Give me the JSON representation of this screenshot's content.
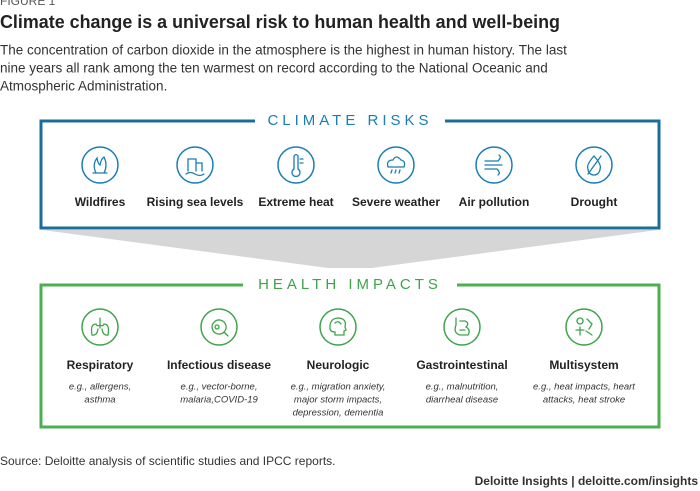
{
  "figure_label": "FIGURE 1",
  "title": "Climate change is a universal risk to human health and well-being",
  "subtitle": [
    "The concentration of carbon dioxide in the atmosphere is the highest in human history. The last",
    "nine years all rank among the ten warmest on record according to the National Oceanic and",
    "Atmospheric Administration."
  ],
  "climate_risks": {
    "heading": "CLIMATE RISKS",
    "items": [
      {
        "label": "Wildfires"
      },
      {
        "label": "Rising sea levels"
      },
      {
        "label": "Extreme heat"
      },
      {
        "label": "Severe weather"
      },
      {
        "label": "Air pollution"
      },
      {
        "label": "Drought"
      }
    ]
  },
  "health_impacts": {
    "heading": "HEALTH IMPACTS",
    "items": [
      {
        "label": "Respiratory",
        "examples": [
          "e.g., allergens,",
          "asthma"
        ]
      },
      {
        "label": "Infectious disease",
        "examples": [
          "e.g., vector-borne,",
          "malaria,COVID-19"
        ]
      },
      {
        "label": "Neurologic",
        "examples": [
          "e.g., migration anxiety,",
          "major storm impacts,",
          "depression, dementia"
        ]
      },
      {
        "label": "Gastrointestinal",
        "examples": [
          "e.g., malnutrition,",
          "diarrheal disease"
        ]
      },
      {
        "label": "Multisystem",
        "examples": [
          "e.g., heat impacts, heart",
          "attacks, heat stroke"
        ]
      }
    ]
  },
  "source": "Source: Deloitte analysis of scientific studies and IPCC reports.",
  "footer": "Deloitte Insights | deloitte.com/insights"
}
